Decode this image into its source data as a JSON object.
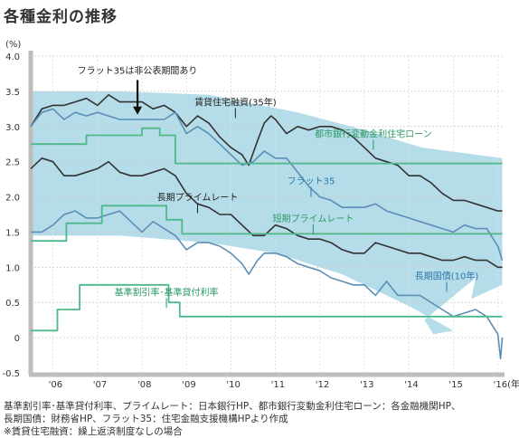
{
  "title": "各種金利の推移",
  "notes": [
    "基準割引率･基準貸付利率、プライムレート：日本銀行HP、都市銀行変動金利住宅ローン：各金融機関HP、",
    "長期国債：財務省HP、フラット35：住宅金融支援機構HPより作成",
    "※賃貸住宅融資：繰上返済制度なしの場合"
  ],
  "colors": {
    "band": "#b5dde9",
    "dark": "#333333",
    "blue": "#5b8fb6",
    "green": "#4db98a",
    "label_blue": "#2e78a8",
    "label_green": "#2a9a65"
  },
  "chart_data": {
    "type": "line",
    "ylabel": "(%)",
    "ylim": [
      -0.5,
      4.0
    ],
    "yticks": [
      "4.0",
      "3.5",
      "3.0",
      "2.5",
      "2.0",
      "1.5",
      "1.0",
      "0.5",
      "0",
      "-0.5"
    ],
    "ytick_values": [
      4.0,
      3.5,
      3.0,
      2.5,
      2.0,
      1.5,
      1.0,
      0.5,
      0,
      -0.5
    ],
    "xlim": [
      2005.5,
      2016.15
    ],
    "xticks": [
      "'06",
      "'07",
      "'08",
      "'09",
      "'10",
      "'11",
      "'12",
      "'13",
      "'14",
      "'15",
      "'16(年)"
    ],
    "xtick_values": [
      2006,
      2007,
      2008,
      2009,
      2010,
      2011,
      2012,
      2013,
      2014,
      2015,
      2016
    ],
    "annotation": {
      "text": "フラット35は非公表期間あり",
      "x": 2007.9,
      "y": 3.18
    },
    "series": [
      {
        "name": "賃貸住宅融資(35年)",
        "color": "dark",
        "label": {
          "x": 2010.1,
          "y": 3.3
        },
        "points": [
          [
            2005.5,
            3.0
          ],
          [
            2005.75,
            3.25
          ],
          [
            2006.0,
            3.3
          ],
          [
            2006.25,
            3.3
          ],
          [
            2006.5,
            3.35
          ],
          [
            2006.75,
            3.4
          ],
          [
            2007.0,
            3.3
          ],
          [
            2007.25,
            3.45
          ],
          [
            2007.5,
            3.35
          ],
          [
            2007.75,
            3.35
          ],
          [
            2008.0,
            3.35
          ],
          [
            2008.25,
            3.25
          ],
          [
            2008.5,
            3.3
          ],
          [
            2008.75,
            3.2
          ],
          [
            2009.0,
            3.0
          ],
          [
            2009.25,
            3.15
          ],
          [
            2009.5,
            3.05
          ],
          [
            2009.75,
            2.85
          ],
          [
            2010.0,
            2.7
          ],
          [
            2010.25,
            2.6
          ],
          [
            2010.4,
            2.45
          ],
          [
            2010.6,
            2.8
          ],
          [
            2010.75,
            3.05
          ],
          [
            2010.9,
            3.15
          ],
          [
            2011.0,
            3.1
          ],
          [
            2011.25,
            2.9
          ],
          [
            2011.5,
            3.0
          ],
          [
            2011.75,
            2.95
          ],
          [
            2012.0,
            3.0
          ],
          [
            2012.25,
            3.0
          ],
          [
            2012.5,
            2.95
          ],
          [
            2012.75,
            2.85
          ],
          [
            2013.0,
            2.7
          ],
          [
            2013.25,
            2.55
          ],
          [
            2013.5,
            2.5
          ],
          [
            2013.75,
            2.45
          ],
          [
            2014.0,
            2.3
          ],
          [
            2014.25,
            2.3
          ],
          [
            2014.5,
            2.2
          ],
          [
            2014.75,
            2.05
          ],
          [
            2015.0,
            1.95
          ],
          [
            2015.25,
            1.95
          ],
          [
            2015.5,
            1.9
          ],
          [
            2015.75,
            1.85
          ],
          [
            2016.0,
            1.8
          ],
          [
            2016.1,
            1.8
          ]
        ]
      },
      {
        "name": "フラット35",
        "color": "blue",
        "label": {
          "x": 2011.8,
          "y": 2.18
        },
        "points": [
          [
            2005.5,
            3.0
          ],
          [
            2005.75,
            3.2
          ],
          [
            2006.0,
            3.25
          ],
          [
            2006.25,
            3.1
          ],
          [
            2006.5,
            3.2
          ],
          [
            2006.75,
            3.15
          ],
          [
            2007.0,
            3.2
          ],
          [
            2007.25,
            3.15
          ],
          [
            2007.5,
            3.1
          ],
          [
            2008.5,
            3.1
          ],
          [
            2008.75,
            3.2
          ],
          [
            2009.0,
            2.9
          ],
          [
            2009.25,
            3.0
          ],
          [
            2009.5,
            2.9
          ],
          [
            2009.75,
            2.75
          ],
          [
            2010.0,
            2.6
          ],
          [
            2010.25,
            2.45
          ],
          [
            2010.5,
            2.5
          ],
          [
            2010.75,
            2.65
          ],
          [
            2011.0,
            2.55
          ],
          [
            2011.25,
            2.55
          ],
          [
            2011.5,
            2.35
          ],
          [
            2011.75,
            2.15
          ],
          [
            2012.0,
            2.0
          ],
          [
            2012.25,
            1.95
          ],
          [
            2012.5,
            1.85
          ],
          [
            2012.75,
            1.85
          ],
          [
            2013.0,
            1.85
          ],
          [
            2013.25,
            1.9
          ],
          [
            2013.5,
            1.8
          ],
          [
            2013.75,
            1.75
          ],
          [
            2014.0,
            1.7
          ],
          [
            2014.25,
            1.65
          ],
          [
            2014.5,
            1.6
          ],
          [
            2014.75,
            1.55
          ],
          [
            2015.0,
            1.5
          ],
          [
            2015.25,
            1.6
          ],
          [
            2015.5,
            1.55
          ],
          [
            2015.75,
            1.55
          ],
          [
            2016.0,
            1.3
          ],
          [
            2016.1,
            1.1
          ]
        ]
      },
      {
        "name": "長期プライムレート",
        "color": "dark",
        "label": {
          "x": 2009.25,
          "y": 1.95
        },
        "points": [
          [
            2005.5,
            2.4
          ],
          [
            2005.75,
            2.55
          ],
          [
            2006.0,
            2.5
          ],
          [
            2006.25,
            2.3
          ],
          [
            2006.5,
            2.3
          ],
          [
            2006.75,
            2.35
          ],
          [
            2007.0,
            2.4
          ],
          [
            2007.25,
            2.5
          ],
          [
            2007.5,
            2.35
          ],
          [
            2007.75,
            2.3
          ],
          [
            2008.0,
            2.3
          ],
          [
            2008.25,
            2.35
          ],
          [
            2008.5,
            2.4
          ],
          [
            2008.75,
            2.3
          ],
          [
            2009.0,
            2.05
          ],
          [
            2009.25,
            1.9
          ],
          [
            2009.5,
            1.85
          ],
          [
            2009.75,
            1.75
          ],
          [
            2010.0,
            1.75
          ],
          [
            2010.25,
            1.6
          ],
          [
            2010.5,
            1.45
          ],
          [
            2010.75,
            1.45
          ],
          [
            2011.0,
            1.6
          ],
          [
            2011.25,
            1.55
          ],
          [
            2011.5,
            1.45
          ],
          [
            2011.75,
            1.4
          ],
          [
            2012.0,
            1.4
          ],
          [
            2012.25,
            1.35
          ],
          [
            2012.5,
            1.25
          ],
          [
            2012.75,
            1.2
          ],
          [
            2013.0,
            1.2
          ],
          [
            2013.25,
            1.35
          ],
          [
            2013.5,
            1.3
          ],
          [
            2013.75,
            1.25
          ],
          [
            2014.0,
            1.2
          ],
          [
            2014.25,
            1.2
          ],
          [
            2014.5,
            1.15
          ],
          [
            2014.75,
            1.1
          ],
          [
            2015.0,
            1.1
          ],
          [
            2015.25,
            1.15
          ],
          [
            2015.5,
            1.1
          ],
          [
            2015.75,
            1.1
          ],
          [
            2016.0,
            1.0
          ],
          [
            2016.1,
            1.0
          ]
        ]
      },
      {
        "name": "長期国債(10年)",
        "color": "blue",
        "label": {
          "x": 2014.85,
          "y": 0.83
        },
        "points": [
          [
            2005.5,
            1.5
          ],
          [
            2005.75,
            1.5
          ],
          [
            2006.0,
            1.6
          ],
          [
            2006.25,
            1.75
          ],
          [
            2006.5,
            1.8
          ],
          [
            2006.75,
            1.7
          ],
          [
            2007.0,
            1.7
          ],
          [
            2007.25,
            1.75
          ],
          [
            2007.5,
            1.8
          ],
          [
            2007.75,
            1.65
          ],
          [
            2008.0,
            1.5
          ],
          [
            2008.25,
            1.65
          ],
          [
            2008.5,
            1.55
          ],
          [
            2008.75,
            1.45
          ],
          [
            2009.0,
            1.25
          ],
          [
            2009.25,
            1.35
          ],
          [
            2009.5,
            1.35
          ],
          [
            2009.75,
            1.3
          ],
          [
            2010.0,
            1.2
          ],
          [
            2010.25,
            1.05
          ],
          [
            2010.4,
            0.9
          ],
          [
            2010.6,
            1.1
          ],
          [
            2010.75,
            1.2
          ],
          [
            2011.0,
            1.2
          ],
          [
            2011.25,
            1.15
          ],
          [
            2011.5,
            1.05
          ],
          [
            2011.75,
            1.0
          ],
          [
            2012.0,
            0.95
          ],
          [
            2012.25,
            0.85
          ],
          [
            2012.5,
            0.8
          ],
          [
            2012.75,
            0.75
          ],
          [
            2013.0,
            0.75
          ],
          [
            2013.25,
            0.6
          ],
          [
            2013.5,
            0.8
          ],
          [
            2013.75,
            0.6
          ],
          [
            2014.0,
            0.6
          ],
          [
            2014.25,
            0.6
          ],
          [
            2014.5,
            0.5
          ],
          [
            2014.75,
            0.4
          ],
          [
            2015.0,
            0.3
          ],
          [
            2015.25,
            0.35
          ],
          [
            2015.5,
            0.4
          ],
          [
            2015.75,
            0.3
          ],
          [
            2016.0,
            0.05
          ],
          [
            2016.06,
            -0.3
          ],
          [
            2016.1,
            0.0
          ]
        ]
      },
      {
        "name": "都市銀行変動金利住宅ローン",
        "color": "green",
        "label": {
          "x": 2013.2,
          "y": 2.85
        },
        "points": [
          [
            2005.5,
            2.75
          ],
          [
            2006.75,
            2.75
          ],
          [
            2006.75,
            2.875
          ],
          [
            2008.0,
            2.875
          ],
          [
            2008.0,
            2.975
          ],
          [
            2008.4,
            2.975
          ],
          [
            2008.4,
            2.875
          ],
          [
            2008.75,
            2.875
          ],
          [
            2008.75,
            2.475
          ],
          [
            2016.1,
            2.475
          ]
        ]
      },
      {
        "name": "短期プライムレート",
        "color": "green",
        "label": {
          "x": 2011.85,
          "y": 1.65
        },
        "points": [
          [
            2005.5,
            1.375
          ],
          [
            2006.3,
            1.375
          ],
          [
            2006.3,
            1.625
          ],
          [
            2007.1,
            1.625
          ],
          [
            2007.1,
            1.875
          ],
          [
            2008.55,
            1.875
          ],
          [
            2008.55,
            1.675
          ],
          [
            2008.9,
            1.675
          ],
          [
            2008.9,
            1.475
          ],
          [
            2016.1,
            1.475
          ]
        ]
      },
      {
        "name": "基準割引率･基準貸付利率",
        "color": "green",
        "label": {
          "x": 2008.55,
          "y": 0.6
        },
        "points": [
          [
            2005.5,
            0.1
          ],
          [
            2006.1,
            0.1
          ],
          [
            2006.1,
            0.4
          ],
          [
            2006.6,
            0.4
          ],
          [
            2006.6,
            0.75
          ],
          [
            2008.6,
            0.75
          ],
          [
            2008.6,
            0.5
          ],
          [
            2008.85,
            0.5
          ],
          [
            2008.85,
            0.3
          ],
          [
            2016.1,
            0.3
          ]
        ]
      }
    ]
  }
}
